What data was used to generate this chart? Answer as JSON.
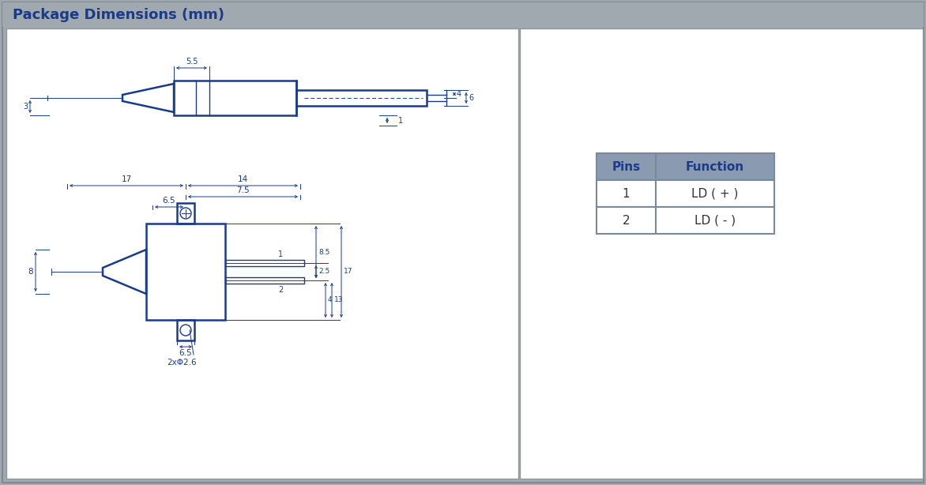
{
  "title": "Package Dimensions (mm)",
  "title_color": "#1a3a8a",
  "title_bg_color": "#a0a8b0",
  "outer_bg_color": "#a0a8b0",
  "inner_bg_color": "#ffffff",
  "drawing_color": "#1a3a8a",
  "table_header_bg": "#8a9ab0",
  "table_header_text": "#1a3a8a",
  "table_border_color": "#7a8a9a",
  "table_pins": [
    "1",
    "2"
  ],
  "table_functions": [
    "LD ( + )",
    "LD ( - )"
  ]
}
